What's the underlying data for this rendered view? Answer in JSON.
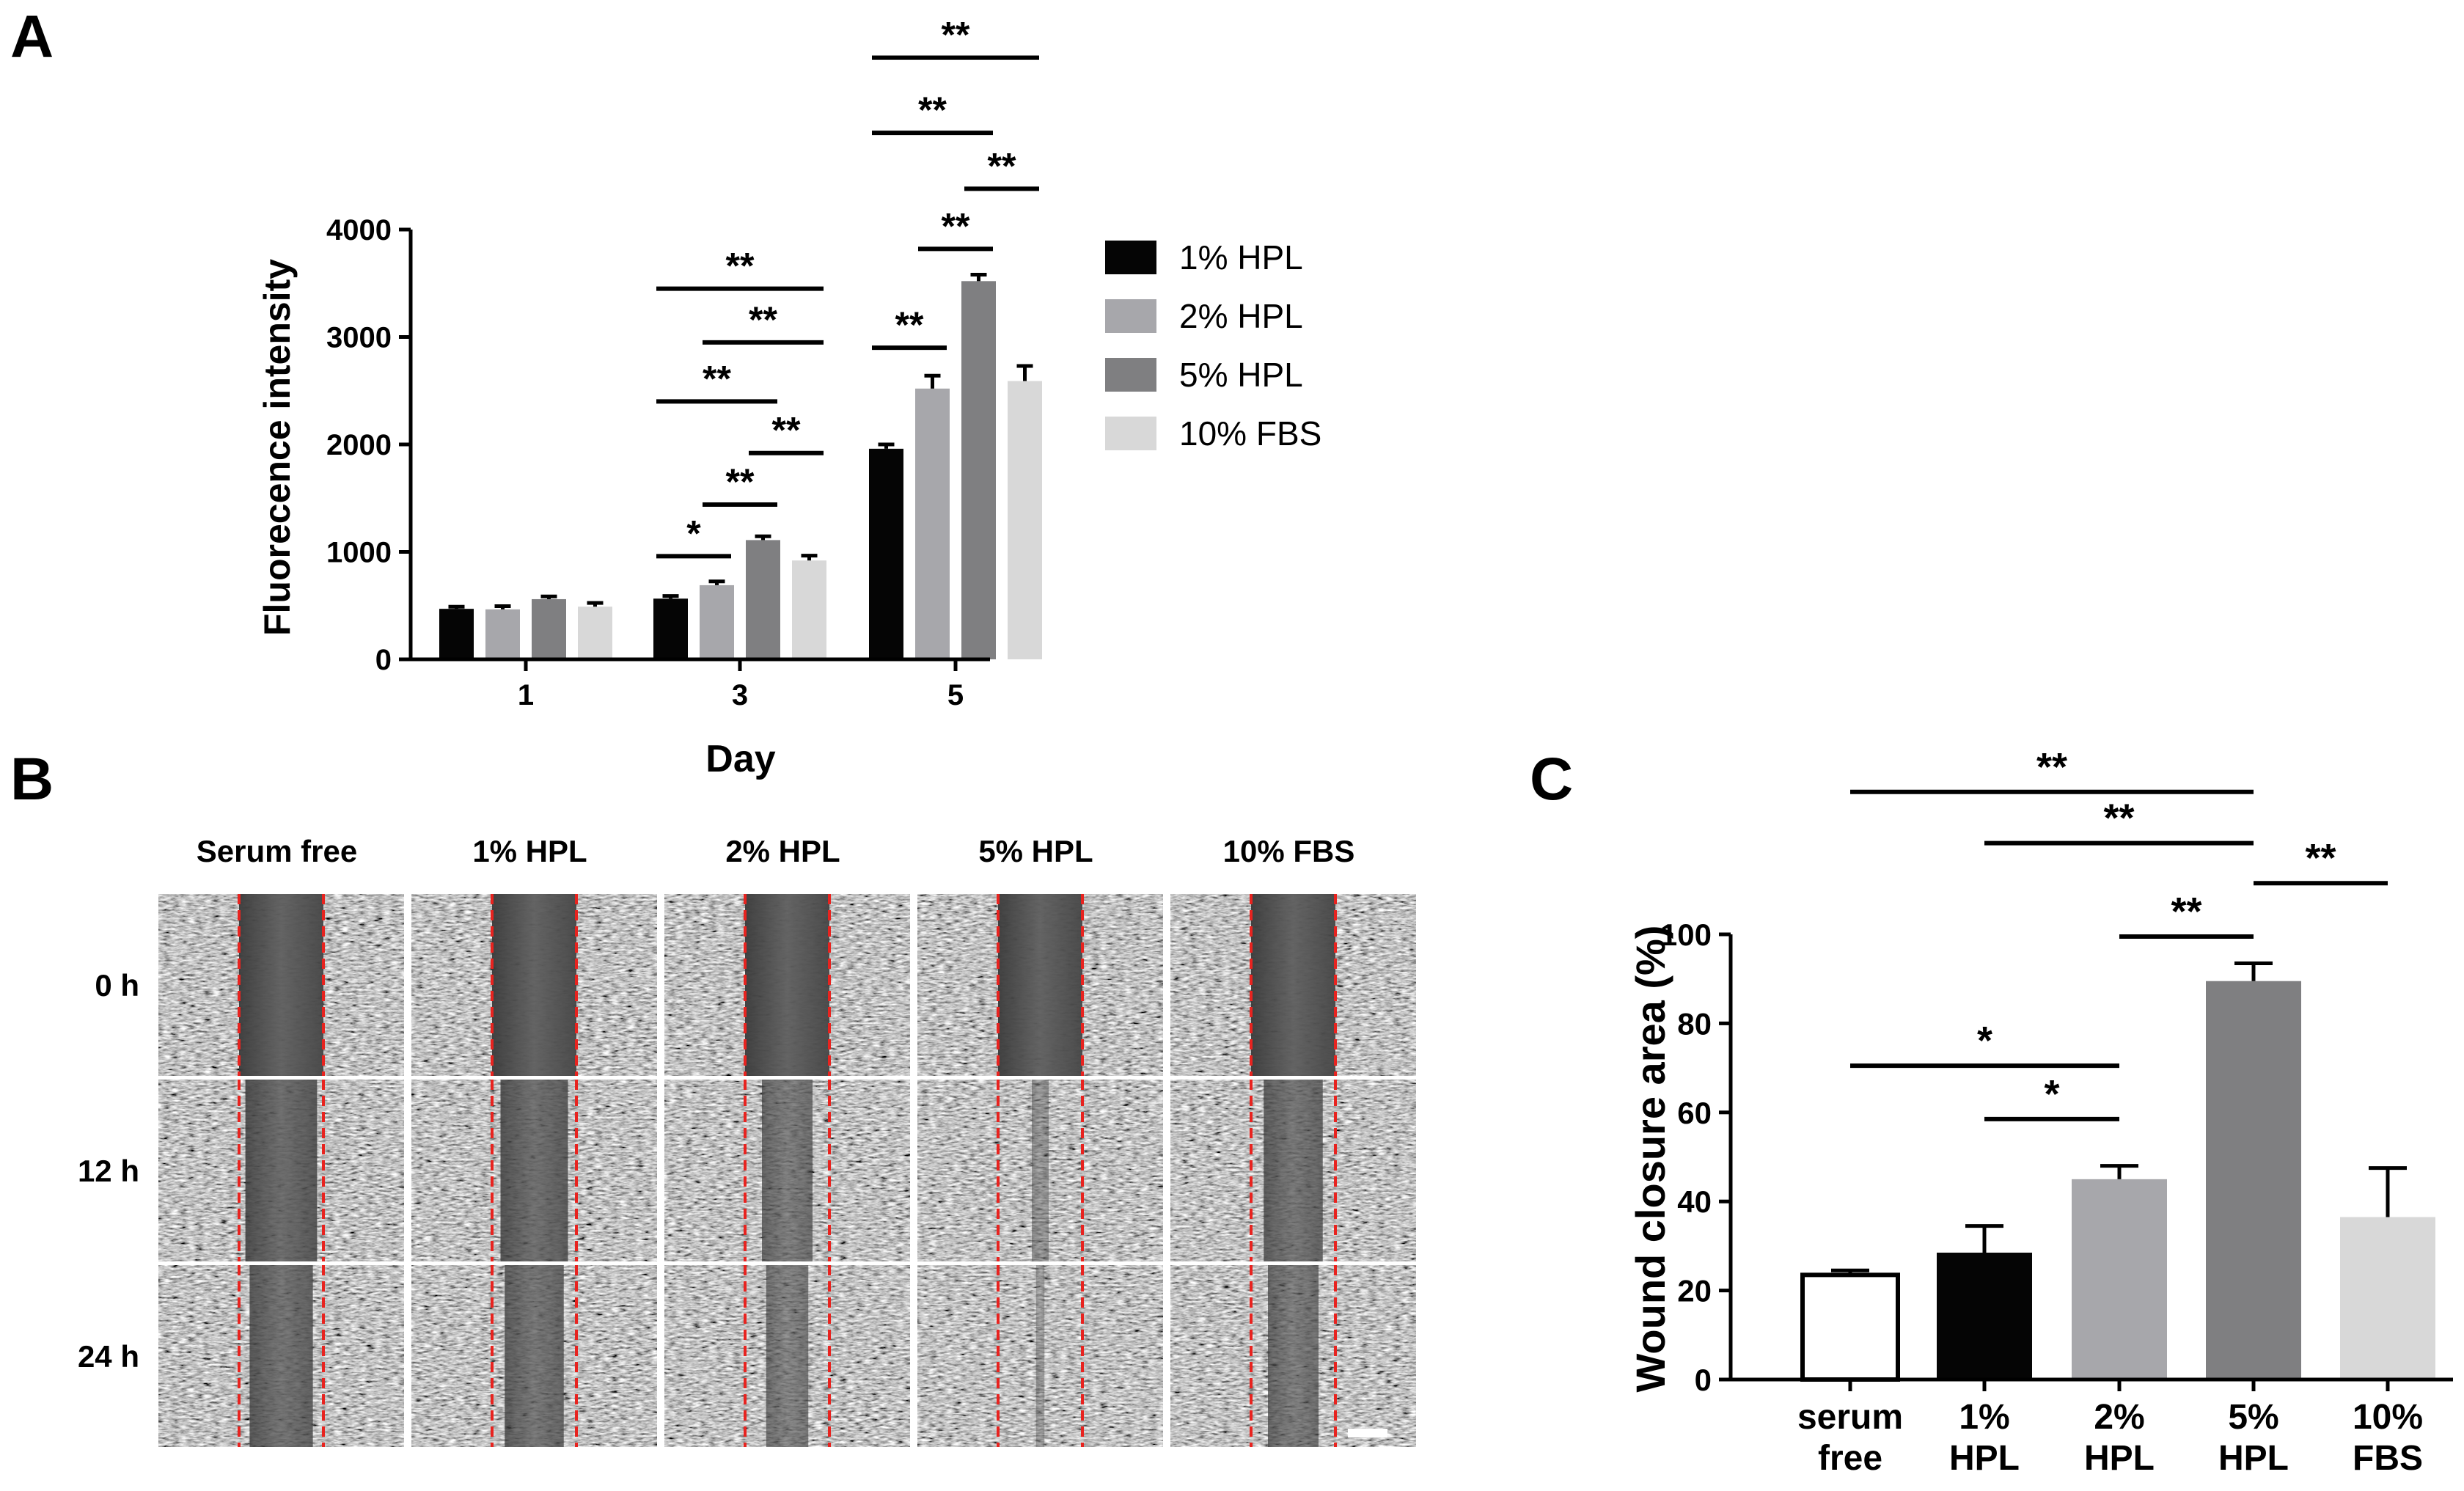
{
  "panels": {
    "a": "A",
    "b": "B",
    "c": "C"
  },
  "colors": {
    "hpl1": "#050505",
    "hpl2": "#a7a7ab",
    "hpl5": "#7f7f81",
    "fbs10": "#d8d8d8",
    "serum_free": "#ffffff",
    "dashed_line": "#e8231f"
  },
  "chart_data": [
    {
      "id": "A",
      "type": "bar",
      "xlabel": "Day",
      "ylabel": "Fluorecence intensity",
      "ylim": [
        0,
        4000
      ],
      "yticks": [
        "0",
        "1000",
        "2000",
        "3000",
        "4000"
      ],
      "categories": [
        "1",
        "3",
        "5"
      ],
      "series": [
        {
          "name": "1% HPL",
          "color_key": "hpl1",
          "values": [
            470,
            565,
            1960
          ],
          "errors": [
            20,
            25,
            40
          ]
        },
        {
          "name": "2% HPL",
          "color_key": "hpl2",
          "values": [
            465,
            690,
            2520
          ],
          "errors": [
            30,
            35,
            120
          ]
        },
        {
          "name": "5% HPL",
          "color_key": "hpl5",
          "values": [
            560,
            1110,
            3520
          ],
          "errors": [
            25,
            35,
            60
          ]
        },
        {
          "name": "10% FBS",
          "color_key": "fbs10",
          "values": [
            490,
            920,
            2590
          ],
          "errors": [
            35,
            45,
            140
          ]
        }
      ],
      "significance": [
        {
          "group": 1,
          "from": 0,
          "to": 1,
          "y": 960,
          "label": "*"
        },
        {
          "group": 1,
          "from": 1,
          "to": 2,
          "y": 1440,
          "label": "**"
        },
        {
          "group": 1,
          "from": 2,
          "to": 3,
          "y": 1920,
          "label": "**"
        },
        {
          "group": 1,
          "from": 0,
          "to": 2,
          "y": 2400,
          "label": "**"
        },
        {
          "group": 1,
          "from": 1,
          "to": 3,
          "y": 2950,
          "label": "**"
        },
        {
          "group": 1,
          "from": 0,
          "to": 3,
          "y": 3450,
          "label": "**"
        },
        {
          "group": 2,
          "from": 0,
          "to": 1,
          "y": 2900,
          "label": "**"
        },
        {
          "group": 2,
          "from": 1,
          "to": 2,
          "y": 3820,
          "label": "**"
        },
        {
          "group": 2,
          "from": 2,
          "to": 3,
          "y": 4380,
          "label": "**"
        },
        {
          "group": 2,
          "from": 0,
          "to": 2,
          "y": 4900,
          "label": "**"
        },
        {
          "group": 2,
          "from": 0,
          "to": 3,
          "y": 5600,
          "label": "**"
        }
      ]
    },
    {
      "id": "C",
      "type": "bar",
      "xlabel": "",
      "ylabel": "Wound closure area (%)",
      "ylim": [
        0,
        100
      ],
      "yticks": [
        "0",
        "20",
        "40",
        "60",
        "80",
        "100"
      ],
      "categories": [
        [
          "serum",
          "free"
        ],
        [
          "1%",
          "HPL"
        ],
        [
          "2%",
          "HPL"
        ],
        [
          "5%",
          "HPL"
        ],
        [
          "10%",
          "FBS"
        ]
      ],
      "bar_color_keys": [
        "serum_free",
        "hpl1",
        "hpl2",
        "hpl5",
        "fbs10"
      ],
      "values": [
        23.5,
        28.5,
        45.0,
        89.5,
        36.5
      ],
      "errors": [
        1.0,
        6.0,
        3.0,
        4.0,
        11.0
      ],
      "significance": [
        {
          "from": 1,
          "to": 2,
          "y": 58.5,
          "label": "*"
        },
        {
          "from": 0,
          "to": 2,
          "y": 70.5,
          "label": "*"
        },
        {
          "from": 2,
          "to": 3,
          "y": 99.5,
          "label": "**"
        },
        {
          "from": 3,
          "to": 4,
          "y": 111.5,
          "label": "**"
        },
        {
          "from": 1,
          "to": 3,
          "y": 120.5,
          "label": "**"
        },
        {
          "from": 0,
          "to": 3,
          "y": 132.0,
          "label": "**"
        }
      ]
    }
  ],
  "micrographs": {
    "columns": [
      "Serum free",
      "1% HPL",
      "2% HPL",
      "5% HPL",
      "10% FBS"
    ],
    "rows": [
      "0 h",
      "12 h",
      "24 h"
    ],
    "wound_width_relative": [
      [
        1.0,
        1.0,
        1.0,
        1.0,
        1.0
      ],
      [
        0.85,
        0.8,
        0.6,
        0.2,
        0.7
      ],
      [
        0.75,
        0.7,
        0.5,
        0.1,
        0.6
      ]
    ],
    "scale_bar": true
  }
}
